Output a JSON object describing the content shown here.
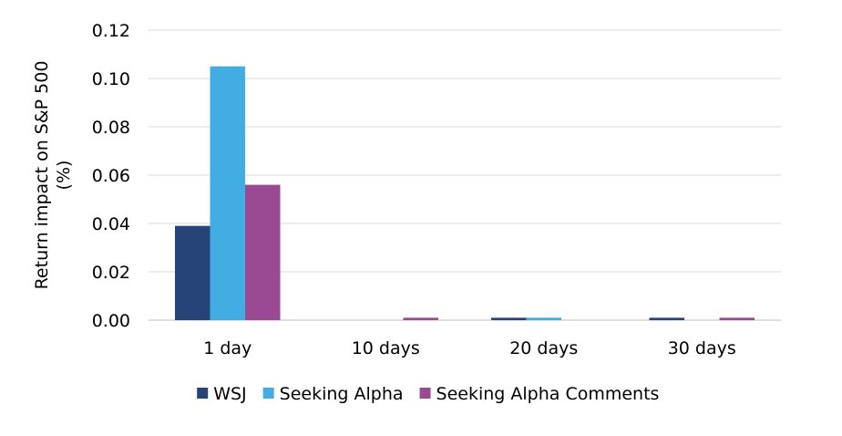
{
  "chart_data": {
    "type": "bar",
    "title": "",
    "xlabel": "",
    "ylabel_lines": [
      "Return impact on S&P 500",
      "(%)"
    ],
    "categories": [
      "1 day",
      "10 days",
      "20 days",
      "30 days"
    ],
    "series": [
      {
        "name": "WSJ",
        "color": "#264478",
        "values": [
          0.039,
          0.0,
          0.001,
          0.001
        ]
      },
      {
        "name": "Seeking Alpha",
        "color": "#41ade2",
        "values": [
          0.105,
          0.0,
          0.001,
          0.0
        ]
      },
      {
        "name": "Seeking Alpha Comments",
        "color": "#9a4a93",
        "values": [
          0.056,
          0.001,
          0.0,
          0.001
        ]
      }
    ],
    "ylim": [
      0,
      0.12
    ],
    "yticks": [
      0.0,
      0.02,
      0.04,
      0.06,
      0.08,
      0.1,
      0.12
    ],
    "ytick_labels": [
      "0.00",
      "0.02",
      "0.04",
      "0.06",
      "0.08",
      "0.10",
      "0.12"
    ],
    "grid": true,
    "legend_position": "bottom"
  }
}
